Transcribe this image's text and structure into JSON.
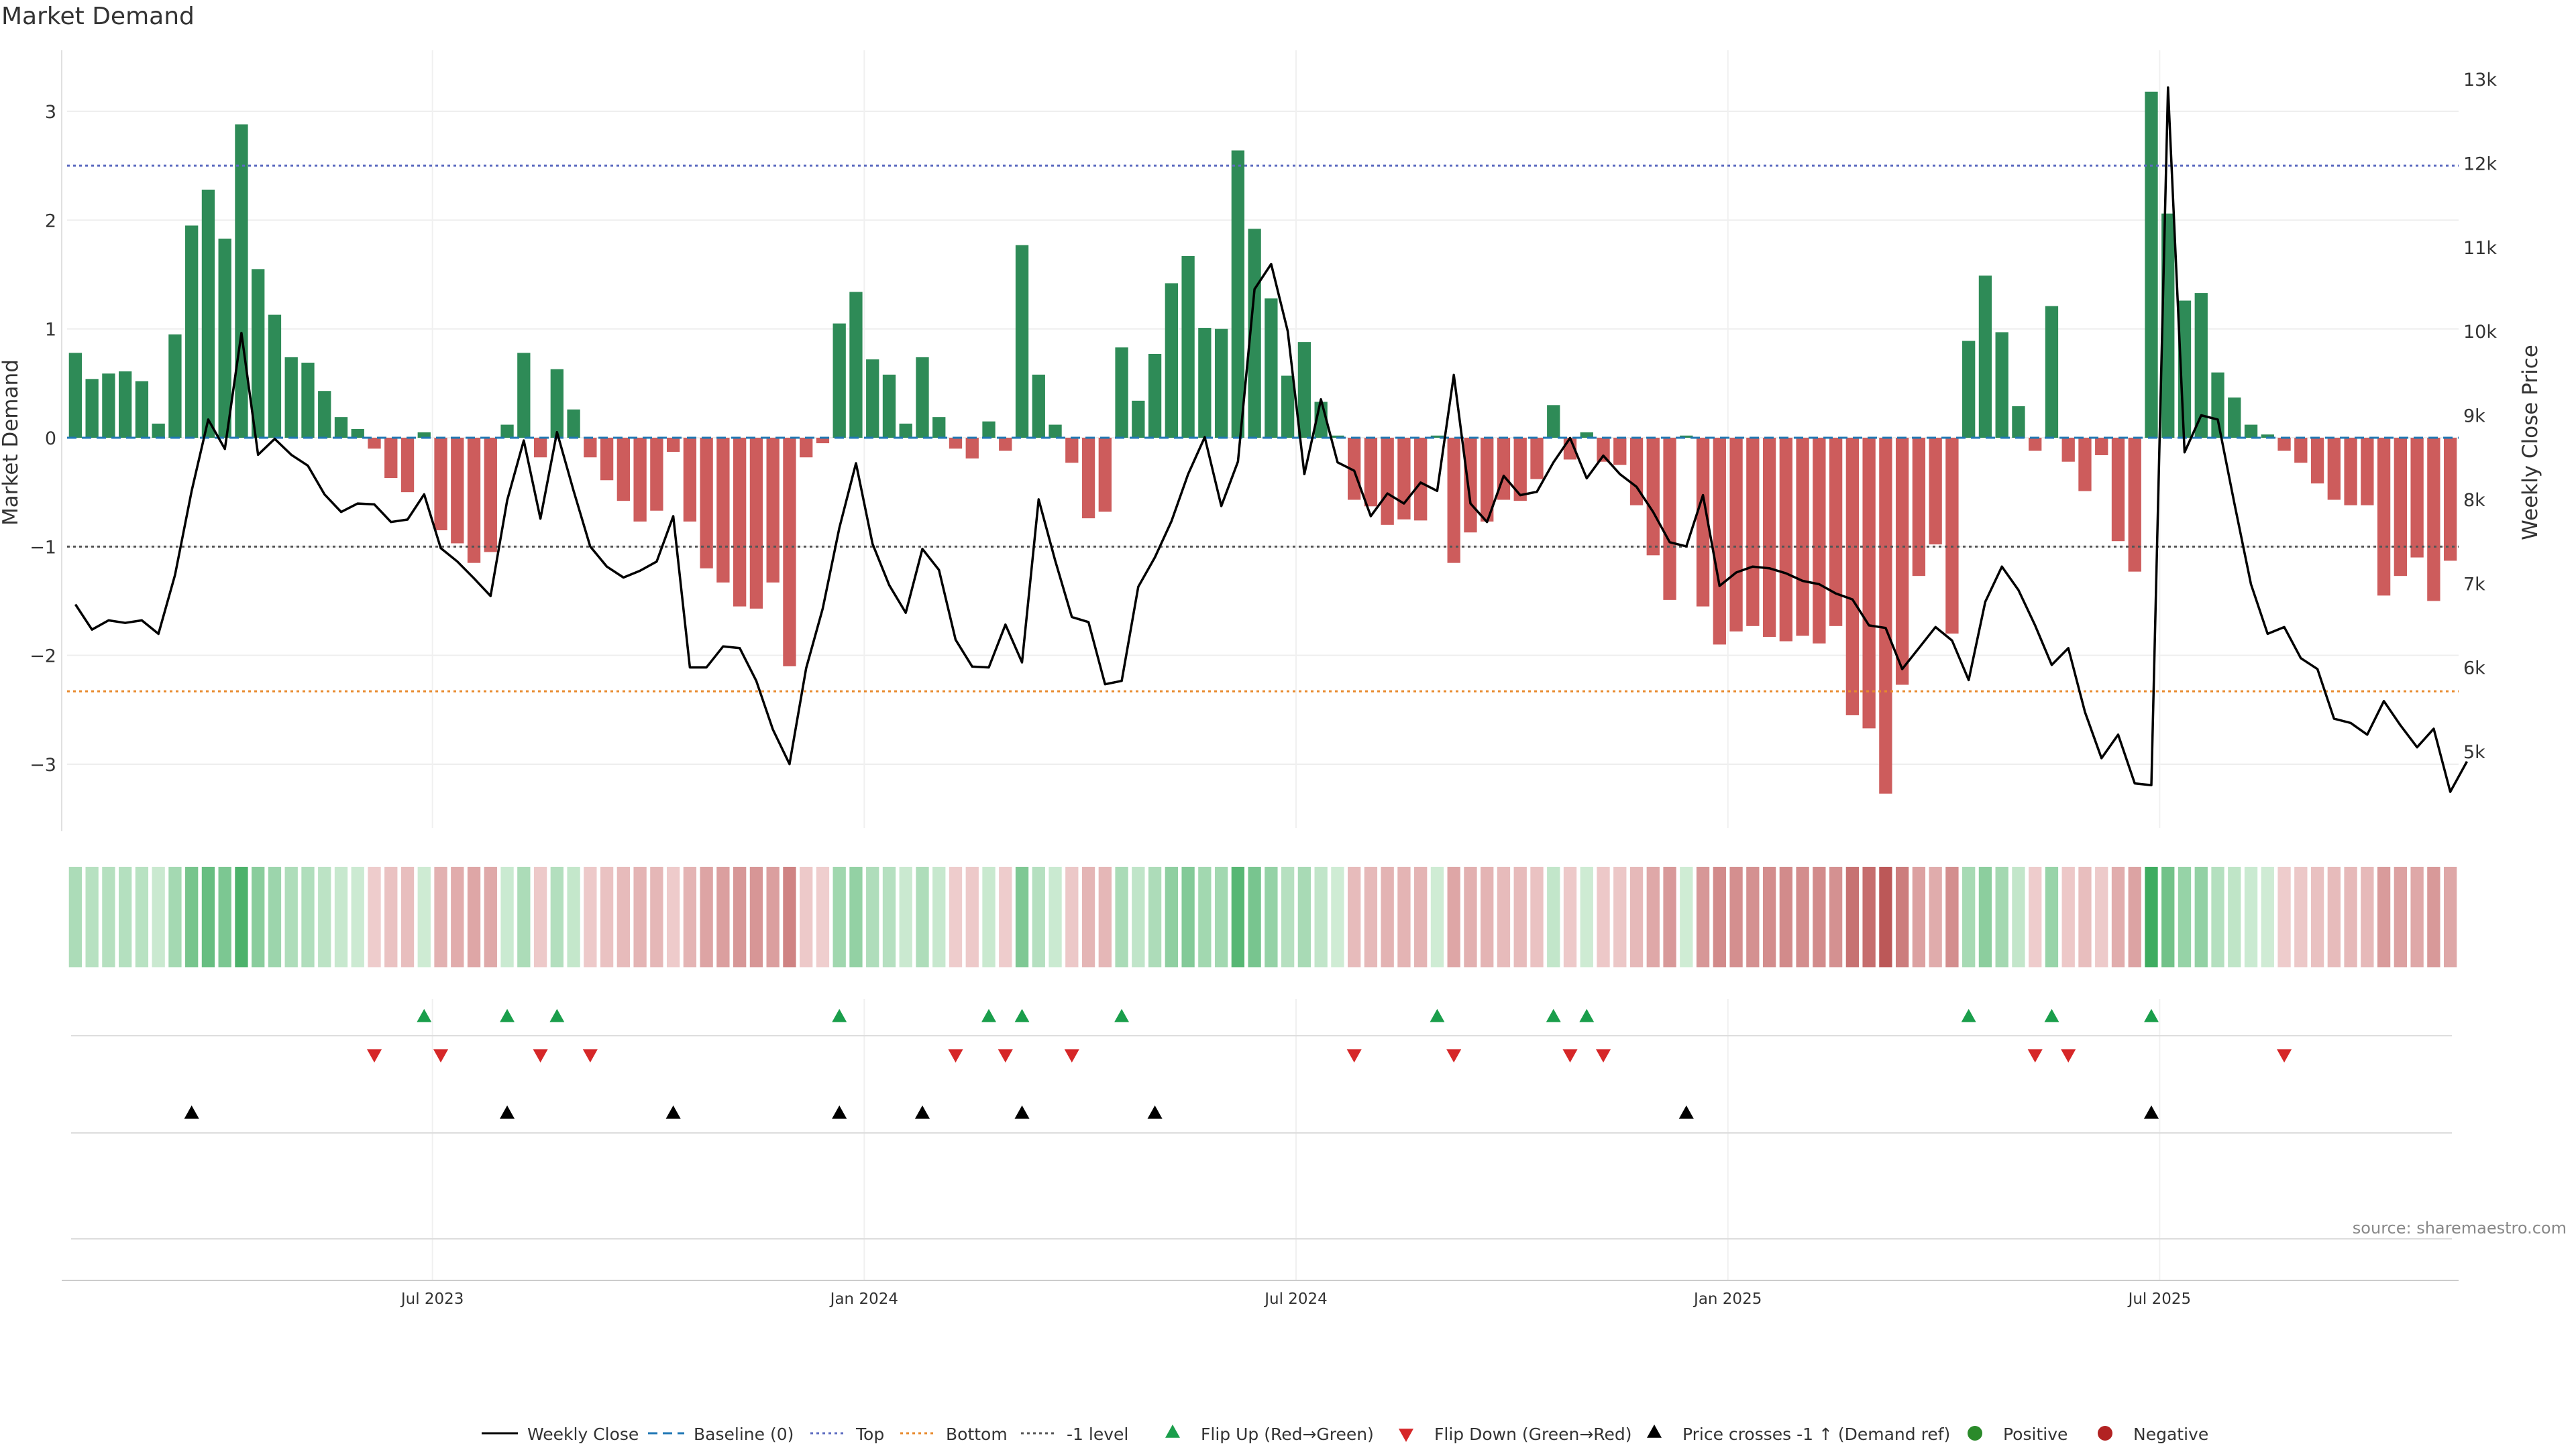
{
  "title": "Market Demand",
  "source": "source: sharemaestro.com",
  "chart_data": {
    "type": "bar",
    "title": "Market Demand",
    "ylabel": "Market Demand",
    "y2label": "Weekly Close Price",
    "ylim": [
      -3.6,
      3.55
    ],
    "y_ticks": [
      3,
      2,
      1,
      0,
      -1,
      -2,
      -3
    ],
    "y_tick_labels": [
      "3",
      "2",
      "1",
      "0",
      "−1",
      "−2",
      "−3"
    ],
    "y2lim": [
      4250,
      13300
    ],
    "y2_ticks": [
      13000,
      12000,
      11000,
      10000,
      9000,
      8000,
      7000,
      6000,
      5000
    ],
    "y2_tick_labels": [
      "13k",
      "12k",
      "11k",
      "10k",
      "9k",
      "8k",
      "7k",
      "6k",
      "5k"
    ],
    "x_ticks": [
      {
        "index": 22,
        "label": "Jul 2023"
      },
      {
        "index": 48,
        "label": "Jan 2024"
      },
      {
        "index": 74,
        "label": "Jul 2024"
      },
      {
        "index": 100,
        "label": "Jan 2025"
      },
      {
        "index": 126,
        "label": "Jul 2025"
      }
    ],
    "reference_lines": [
      {
        "name": "Top",
        "value": 2.5,
        "color": "#5c6bc0"
      },
      {
        "name": "Bottom",
        "value": -2.33,
        "color": "#e8892b"
      },
      {
        "name": "-1 level",
        "value": -1.0,
        "color": "#555555"
      }
    ],
    "demand": [
      0.78,
      0.54,
      0.59,
      0.61,
      0.52,
      0.13,
      0.95,
      1.95,
      2.28,
      1.83,
      2.88,
      1.55,
      1.13,
      0.74,
      0.69,
      0.43,
      0.19,
      0.08,
      -0.1,
      -0.37,
      -0.5,
      0.05,
      -0.85,
      -0.97,
      -1.15,
      -1.05,
      0.12,
      0.78,
      -0.18,
      0.63,
      0.26,
      -0.18,
      -0.39,
      -0.58,
      -0.77,
      -0.67,
      -0.13,
      -0.77,
      -1.2,
      -1.33,
      -1.55,
      -1.57,
      -1.33,
      -2.1,
      -0.18,
      -0.05,
      1.05,
      1.34,
      0.72,
      0.58,
      0.13,
      0.74,
      0.19,
      -0.1,
      -0.19,
      0.15,
      -0.12,
      1.77,
      0.58,
      0.12,
      -0.23,
      -0.74,
      -0.68,
      0.83,
      0.34,
      0.77,
      1.42,
      1.67,
      1.01,
      1.0,
      2.64,
      1.92,
      1.28,
      0.57,
      0.88,
      0.33,
      0.02,
      -0.57,
      -0.63,
      -0.8,
      -0.75,
      -0.76,
      0.02,
      -1.15,
      -0.87,
      -0.77,
      -0.57,
      -0.58,
      -0.38,
      0.3,
      -0.2,
      0.05,
      -0.22,
      -0.25,
      -0.62,
      -1.08,
      -1.49,
      0.02,
      -1.55,
      -1.9,
      -1.78,
      -1.73,
      -1.83,
      -1.87,
      -1.82,
      -1.89,
      -1.73,
      -2.55,
      -2.67,
      -3.27,
      -2.27,
      -1.27,
      -0.98,
      -1.8,
      0.89,
      1.49,
      0.97,
      0.29,
      -0.12,
      1.21,
      -0.22,
      -0.49,
      -0.16,
      -0.95,
      -1.23,
      3.18,
      2.06,
      1.26,
      1.33,
      0.6,
      0.37,
      0.12,
      0.03,
      -0.12,
      -0.23,
      -0.42,
      -0.57,
      -0.62,
      -0.62,
      -1.45,
      -1.27,
      -1.1,
      -1.5,
      -1.13
    ],
    "price": [
      6750,
      6450,
      6560,
      6530,
      6560,
      6400,
      7100,
      8100,
      8950,
      8600,
      9980,
      8530,
      8720,
      8530,
      8400,
      8060,
      7850,
      7950,
      7940,
      7730,
      7760,
      8060,
      7420,
      7260,
      7060,
      6850,
      7990,
      8700,
      7770,
      8800,
      8100,
      7440,
      7200,
      7070,
      7150,
      7260,
      7800,
      6000,
      6000,
      6250,
      6230,
      5840,
      5260,
      4850,
      5990,
      6700,
      7660,
      8430,
      7470,
      6980,
      6650,
      7410,
      7160,
      6330,
      6010,
      6000,
      6510,
      6060,
      8000,
      7270,
      6600,
      6540,
      5800,
      5840,
      6960,
      7310,
      7740,
      8300,
      8740,
      7920,
      8450,
      10500,
      10800,
      10000,
      8300,
      9190,
      8440,
      8340,
      7800,
      8070,
      7950,
      8200,
      8100,
      9480,
      7950,
      7730,
      8280,
      8050,
      8090,
      8440,
      8730,
      8250,
      8520,
      8300,
      8150,
      7850,
      7490,
      7440,
      8050,
      6970,
      7130,
      7200,
      7180,
      7120,
      7030,
      6990,
      6880,
      6810,
      6500,
      6470,
      5980,
      6230,
      6480,
      6320,
      5850,
      6780,
      7200,
      6920,
      6500,
      6030,
      6230,
      5470,
      4920,
      5200,
      4620,
      4600,
      12900,
      8560,
      9000,
      8950,
      7950,
      6990,
      6400,
      6480,
      6110,
      5980,
      5390,
      5340,
      5200,
      5600,
      5310,
      5050,
      5270,
      4520,
      4880
    ],
    "flip_up_indices": [
      21,
      26,
      29,
      46,
      55,
      57,
      63,
      82,
      89,
      91,
      114,
      119,
      125
    ],
    "flip_down_indices": [
      18,
      22,
      28,
      31,
      53,
      56,
      60,
      77,
      83,
      90,
      92,
      118,
      120,
      133
    ],
    "price_cross_indices": [
      7,
      26,
      36,
      46,
      51,
      57,
      65,
      97,
      125
    ],
    "legend": [
      {
        "label": "Weekly Close",
        "type": "line-solid",
        "color": "#000000"
      },
      {
        "label": "Baseline (0)",
        "type": "line-dashed",
        "color": "#1f77b4"
      },
      {
        "label": "Top",
        "type": "line-dotted",
        "color": "#5c6bc0"
      },
      {
        "label": "Bottom",
        "type": "line-dotted",
        "color": "#e8892b"
      },
      {
        "label": "-1 level",
        "type": "line-dotted",
        "color": "#555555"
      },
      {
        "label": "Flip Up (Red→Green)",
        "type": "tri-up",
        "color": "#1a9e4b"
      },
      {
        "label": "Flip Down (Green→Red)",
        "type": "tri-down",
        "color": "#d62728"
      },
      {
        "label": "Price crosses -1 ↑ (Demand ref)",
        "type": "tri-up",
        "color": "#000000"
      },
      {
        "label": "Positive",
        "type": "dot",
        "color": "#2a8a2a"
      },
      {
        "label": "Negative",
        "type": "dot",
        "color": "#b22222"
      }
    ],
    "colors": {
      "positive_bar": "#2e8b57",
      "negative_bar": "#cd5c5c",
      "price_line": "#000000",
      "baseline": "#1f77b4"
    }
  }
}
